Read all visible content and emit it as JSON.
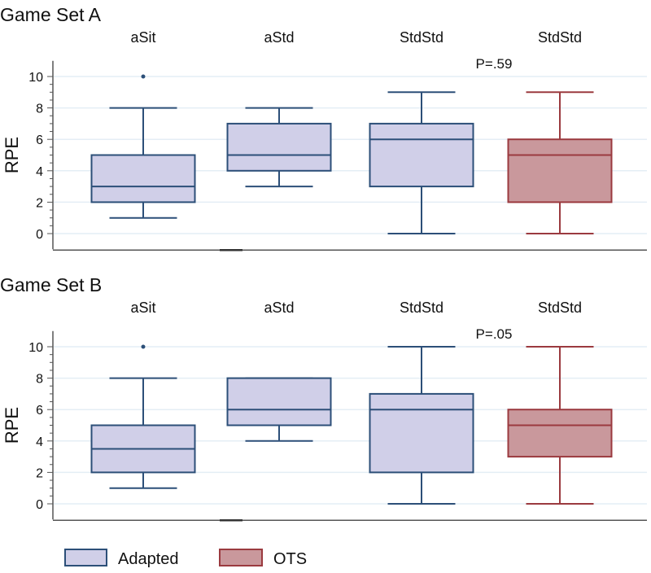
{
  "chart_data": [
    {
      "type": "box",
      "title": "Game Set A",
      "ylabel": "RPE",
      "ylim": [
        -1,
        11
      ],
      "yticks": [
        0,
        2,
        4,
        6,
        8,
        10
      ],
      "grid": true,
      "annotation": "P=.59",
      "categories": [
        "aSit",
        "aStd",
        "StdStd",
        "StdStd"
      ],
      "groups": [
        "Adapted",
        "Adapted",
        "Adapted",
        "OTS"
      ],
      "boxes": [
        {
          "min": 1,
          "q1": 2,
          "median": 3,
          "q3": 5,
          "max": 8,
          "outliers": [
            10
          ]
        },
        {
          "min": 3,
          "q1": 4,
          "median": 5,
          "q3": 7,
          "max": 8,
          "outliers": []
        },
        {
          "min": 0,
          "q1": 3,
          "median": 6,
          "q3": 7,
          "max": 9,
          "outliers": []
        },
        {
          "min": 0,
          "q1": 2,
          "median": 5,
          "q3": 6,
          "max": 9,
          "outliers": []
        }
      ]
    },
    {
      "type": "box",
      "title": "Game Set B",
      "ylabel": "RPE",
      "ylim": [
        -1,
        11
      ],
      "yticks": [
        0,
        2,
        4,
        6,
        8,
        10
      ],
      "grid": true,
      "annotation": "P=.05",
      "categories": [
        "aSit",
        "aStd",
        "StdStd",
        "StdStd"
      ],
      "groups": [
        "Adapted",
        "Adapted",
        "Adapted",
        "OTS"
      ],
      "boxes": [
        {
          "min": 1,
          "q1": 2,
          "median": 3.5,
          "q3": 5,
          "max": 8,
          "outliers": [
            10
          ]
        },
        {
          "min": 4,
          "q1": 5,
          "median": 6,
          "q3": 8,
          "max": 8,
          "outliers": []
        },
        {
          "min": 0,
          "q1": 2,
          "median": 6,
          "q3": 7,
          "max": 10,
          "outliers": []
        },
        {
          "min": 0,
          "q1": 3,
          "median": 5,
          "q3": 6,
          "max": 10,
          "outliers": []
        }
      ]
    }
  ],
  "legend": {
    "placement": "bottom-left",
    "items": [
      {
        "label": "Adapted",
        "stroke": "#2c4f78",
        "fill": "#d0cfe8"
      },
      {
        "label": "OTS",
        "stroke": "#9b3a3f",
        "fill": "#c9989c"
      }
    ]
  }
}
